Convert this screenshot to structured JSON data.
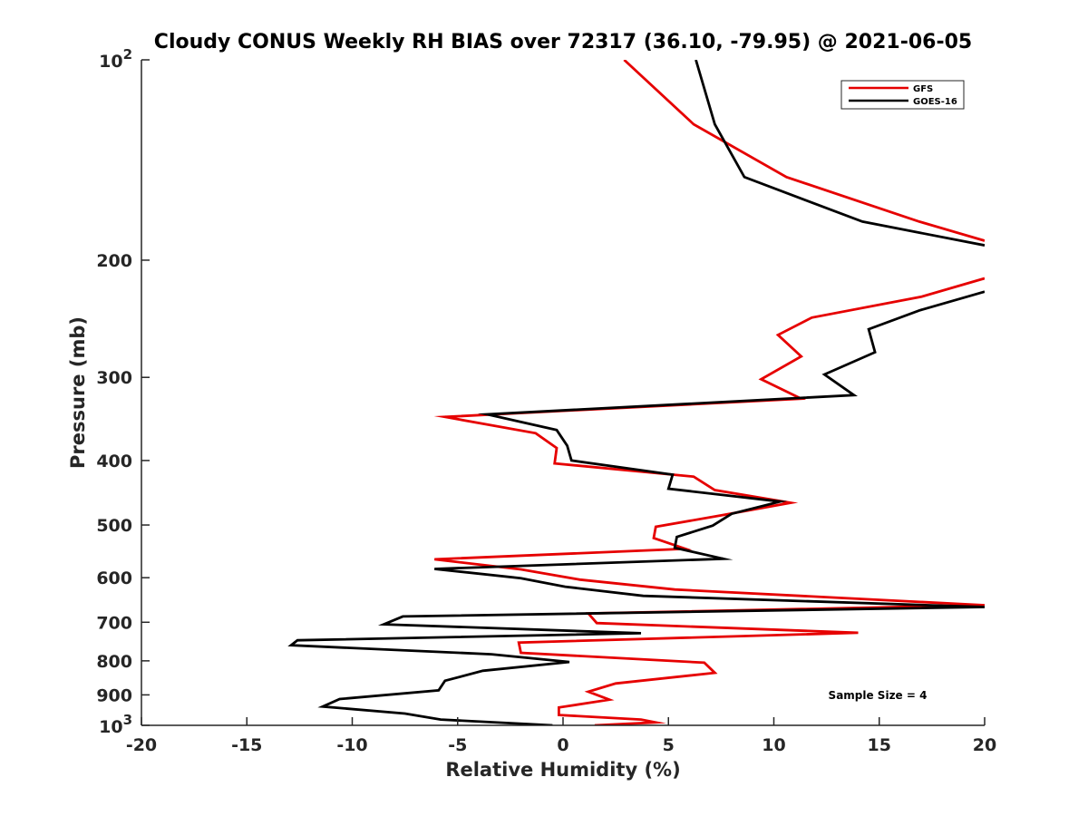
{
  "chart_data": {
    "type": "line",
    "title": "Cloudy CONUS Weekly RH BIAS over 72317 (36.10, -79.95) @ 2021-06-05",
    "xlabel": "Relative Humidity (%)",
    "ylabel": "Pressure (mb)",
    "xlim": [
      -20,
      20
    ],
    "ylim": [
      100,
      1000
    ],
    "yscale": "log",
    "y_reversed": true,
    "x_ticks": [
      "-20",
      "-15",
      "-10",
      "-5",
      "0",
      "5",
      "10",
      "15",
      "20"
    ],
    "y_ticks": [
      {
        "value": 100,
        "base": "10",
        "exp": "2"
      },
      {
        "value": 200,
        "label": "200"
      },
      {
        "value": 300,
        "label": "300"
      },
      {
        "value": 400,
        "label": "400"
      },
      {
        "value": 500,
        "label": "500"
      },
      {
        "value": 600,
        "label": "600"
      },
      {
        "value": 700,
        "label": "700"
      },
      {
        "value": 800,
        "label": "800"
      },
      {
        "value": 900,
        "label": "900"
      },
      {
        "value": 1000,
        "base": "10",
        "exp": "3"
      }
    ],
    "legend_position": "top-right",
    "annotation": "Sample Size = 4",
    "series": [
      {
        "name": "GFS",
        "color": "#e60000",
        "points": [
          [
            2.9,
            100
          ],
          [
            6.2,
            125
          ],
          [
            10.6,
            150
          ],
          [
            16.9,
            175
          ],
          [
            20.0,
            187
          ],
          [
            null,
            null
          ],
          [
            20.0,
            213
          ],
          [
            17.0,
            227
          ],
          [
            11.8,
            244
          ],
          [
            10.2,
            259
          ],
          [
            11.3,
            279
          ],
          [
            9.4,
            302
          ],
          [
            11.3,
            323
          ],
          [
            -5.6,
            344
          ],
          [
            -1.3,
            364
          ],
          [
            -0.3,
            383
          ],
          [
            -0.4,
            404
          ],
          [
            6.2,
            423
          ],
          [
            7.2,
            443
          ],
          [
            10.8,
            463
          ],
          [
            7.6,
            483
          ],
          [
            4.4,
            503
          ],
          [
            4.3,
            523
          ],
          [
            5.8,
            543
          ],
          [
            -6.1,
            563
          ],
          [
            -2.0,
            583
          ],
          [
            0.8,
            604
          ],
          [
            5.3,
            625
          ],
          [
            20.0,
            660
          ],
          [
            1.2,
            679
          ],
          [
            1.6,
            702
          ],
          [
            14.0,
            726
          ],
          [
            -2.1,
            751
          ],
          [
            -2.0,
            778
          ],
          [
            6.7,
            805
          ],
          [
            7.2,
            834
          ],
          [
            2.5,
            865
          ],
          [
            1.2,
            890
          ],
          [
            2.2,
            915
          ],
          [
            -0.2,
            940
          ],
          [
            -0.2,
            965
          ],
          [
            3.7,
            980
          ],
          [
            4.4,
            990
          ],
          [
            1.5,
            1000
          ]
        ]
      },
      {
        "name": "GOES-16",
        "color": "#000000",
        "points": [
          [
            6.3,
            100
          ],
          [
            7.2,
            125
          ],
          [
            8.6,
            150
          ],
          [
            14.2,
            175
          ],
          [
            20.0,
            190
          ],
          [
            null,
            null
          ],
          [
            20.0,
            223
          ],
          [
            16.9,
            238
          ],
          [
            14.5,
            254
          ],
          [
            14.8,
            275
          ],
          [
            12.4,
            297
          ],
          [
            13.8,
            319
          ],
          [
            -3.6,
            341
          ],
          [
            -0.3,
            360
          ],
          [
            0.2,
            380
          ],
          [
            0.4,
            400
          ],
          [
            5.2,
            420
          ],
          [
            5.0,
            441
          ],
          [
            10.3,
            461
          ],
          [
            8.0,
            481
          ],
          [
            7.1,
            501
          ],
          [
            5.4,
            521
          ],
          [
            5.3,
            541
          ],
          [
            7.6,
            562
          ],
          [
            -6.1,
            582
          ],
          [
            -2.0,
            601
          ],
          [
            0.1,
            619
          ],
          [
            3.8,
            639
          ],
          [
            20.0,
            664
          ],
          [
            -7.6,
            686
          ],
          [
            -8.5,
            705
          ],
          [
            3.7,
            727
          ],
          [
            -12.6,
            745
          ],
          [
            -12.9,
            758
          ],
          [
            -3.4,
            782
          ],
          [
            0.3,
            803
          ],
          [
            -3.8,
            828
          ],
          [
            -5.6,
            857
          ],
          [
            -5.9,
            886
          ],
          [
            -10.6,
            913
          ],
          [
            -11.4,
            937
          ],
          [
            -7.5,
            960
          ],
          [
            -5.8,
            980
          ],
          [
            -0.5,
            1000
          ]
        ]
      }
    ]
  }
}
